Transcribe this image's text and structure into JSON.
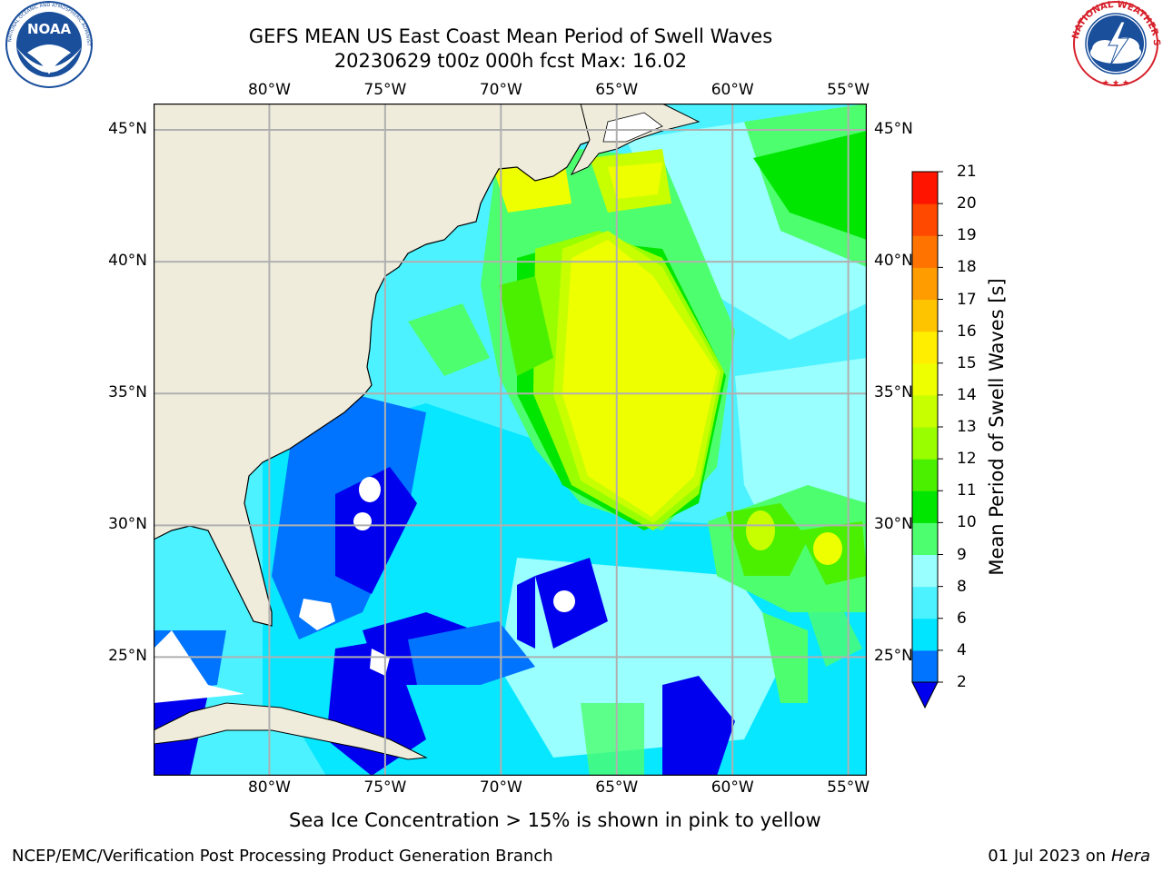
{
  "header": {
    "title_line1": "GEFS MEAN US East Coast Mean Period of Swell Waves",
    "title_line2": "20230629 t00z 000h fcst   Max: 16.02"
  },
  "logos": {
    "left": {
      "name": "noaa-logo",
      "text": "NOAA",
      "ring_text": "NATIONAL OCEANIC AND ATMOSPHERIC ADMINISTRATION · U.S. DEPARTMENT OF COMMERCE",
      "color": "#1a4f9c"
    },
    "right": {
      "name": "nws-logo",
      "ring_text": "NATIONAL WEATHER SERVICE",
      "color": "#d6202a"
    }
  },
  "map": {
    "lon_ticks_top": [
      "80°W",
      "75°W",
      "70°W",
      "65°W",
      "60°W",
      "55°W"
    ],
    "lon_ticks_bottom": [
      "80°W",
      "75°W",
      "70°W",
      "65°W",
      "60°W",
      "55°W"
    ],
    "lat_ticks_left": [
      "45°N",
      "40°N",
      "35°N",
      "30°N",
      "25°N"
    ],
    "lat_ticks_right": [
      "45°N",
      "40°N",
      "35°N",
      "30°N",
      "25°N"
    ],
    "lon_values": [
      -80,
      -75,
      -70,
      -65,
      -60,
      -55
    ],
    "lat_values": [
      45,
      40,
      35,
      30,
      25
    ],
    "extent": {
      "lon_min": -85,
      "lon_max": -54.2,
      "lat_min": 20.5,
      "lat_max": 46
    },
    "land_color": "#efecdc",
    "grid_color": "#b0b0b0"
  },
  "colorbar": {
    "title": "Mean Period of Swell Waves [s]",
    "levels": [
      "2",
      "4",
      "6",
      "8",
      "9",
      "10",
      "11",
      "12",
      "13",
      "14",
      "15",
      "16",
      "17",
      "18",
      "19",
      "20",
      "21"
    ],
    "colors": [
      "#0073ff",
      "#00e5ff",
      "#4cf2ff",
      "#99ffff",
      "#4dff6e",
      "#00e600",
      "#4bf000",
      "#99ff00",
      "#c8ff00",
      "#eeff00",
      "#ffee00",
      "#ffc400",
      "#ff9c00",
      "#ff7400",
      "#ff4800",
      "#ff1400"
    ],
    "under_color": "#0000ee"
  },
  "caption": "Sea Ice Concentration > 15% is shown in pink to yellow",
  "footer": {
    "left": "NCEP/EMC/Verification Post Processing Product Generation Branch",
    "date": "01 Jul 2023 on ",
    "machine": "Hera"
  }
}
